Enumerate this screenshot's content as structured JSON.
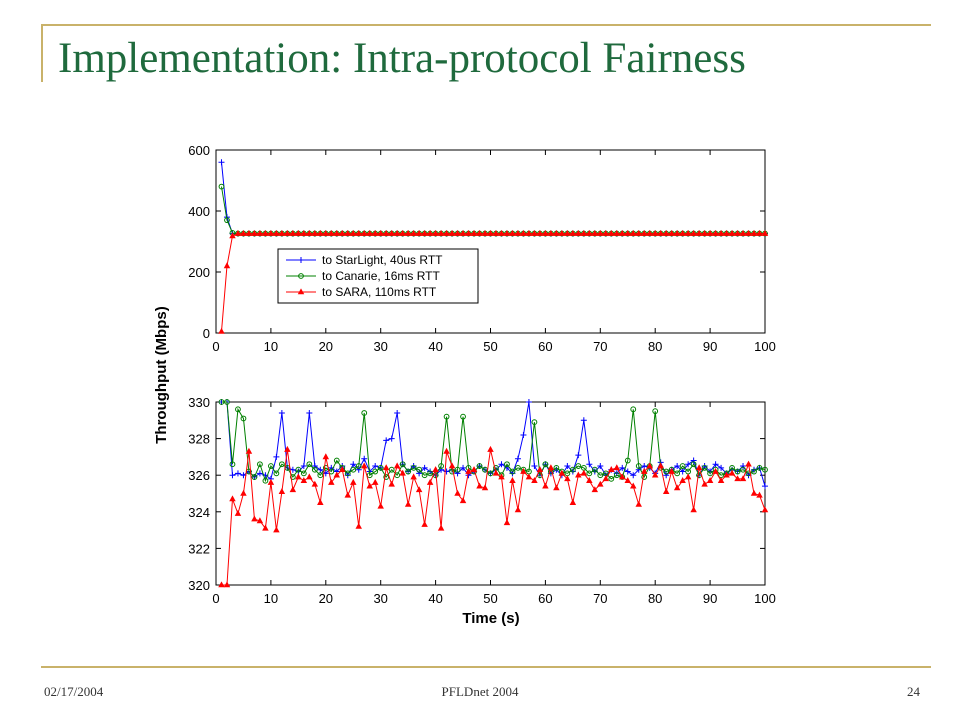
{
  "slide": {
    "title": "Implementation: Intra-protocol Fairness",
    "footer": {
      "date": "02/17/2004",
      "center": "PFLDnet 2004",
      "page": "24"
    }
  },
  "colors": {
    "title": "#1f6a3d",
    "accent": "#c9b26a"
  },
  "chart_data": [
    {
      "type": "line",
      "xlabel": "",
      "ylabel": "Throughput (Mbps)",
      "xlim": [
        0,
        100
      ],
      "ylim": [
        0,
        600
      ],
      "xticks": [
        "0",
        "10",
        "20",
        "30",
        "40",
        "50",
        "60",
        "70",
        "80",
        "90",
        "100"
      ],
      "yticks": [
        "0",
        "200",
        "400",
        "600"
      ],
      "grid": false,
      "legend_position": "center-left",
      "x": [
        1,
        2,
        3,
        4,
        5,
        6,
        7,
        8,
        9,
        10,
        11,
        12,
        13,
        14,
        15,
        16,
        17,
        18,
        19,
        20,
        21,
        22,
        23,
        24,
        25,
        26,
        27,
        28,
        29,
        30,
        31,
        32,
        33,
        34,
        35,
        36,
        37,
        38,
        39,
        40,
        41,
        42,
        43,
        44,
        45,
        46,
        47,
        48,
        49,
        50,
        51,
        52,
        53,
        54,
        55,
        56,
        57,
        58,
        59,
        60,
        61,
        62,
        63,
        64,
        65,
        66,
        67,
        68,
        69,
        70,
        71,
        72,
        73,
        74,
        75,
        76,
        77,
        78,
        79,
        80,
        81,
        82,
        83,
        84,
        85,
        86,
        87,
        88,
        89,
        90,
        91,
        92,
        93,
        94,
        95,
        96,
        97,
        98,
        99,
        100
      ],
      "series": [
        {
          "name": "to StarLight, 40us RTT",
          "color": "#0000ff",
          "marker": "plus",
          "values": [
            560,
            380,
            326,
            326,
            326,
            326,
            326,
            326,
            326,
            326,
            326,
            326,
            326,
            326,
            326,
            326,
            326,
            326,
            326,
            326,
            326,
            326,
            326,
            326,
            326,
            326,
            326,
            326,
            326,
            326,
            326,
            326,
            326,
            326,
            326,
            326,
            326,
            326,
            326,
            326,
            326,
            326,
            326,
            326,
            326,
            326,
            326,
            326,
            326,
            326,
            326,
            326,
            326,
            326,
            326,
            326,
            326,
            326,
            326,
            326,
            326,
            326,
            326,
            326,
            326,
            326,
            326,
            326,
            326,
            326,
            326,
            326,
            326,
            326,
            326,
            326,
            326,
            326,
            326,
            326,
            326,
            326,
            326,
            326,
            326,
            326,
            326,
            326,
            326,
            326,
            326,
            326,
            326,
            326,
            326,
            326,
            326,
            326,
            326,
            326
          ]
        },
        {
          "name": "to Canarie, 16ms RTT",
          "color": "#008000",
          "marker": "circle",
          "values": [
            480,
            370,
            328,
            326,
            326,
            326,
            326,
            326,
            326,
            326,
            326,
            326,
            326,
            326,
            326,
            326,
            326,
            326,
            326,
            326,
            326,
            326,
            326,
            326,
            326,
            326,
            326,
            326,
            326,
            326,
            326,
            326,
            326,
            326,
            326,
            326,
            326,
            326,
            326,
            326,
            326,
            326,
            326,
            326,
            326,
            326,
            326,
            326,
            326,
            326,
            326,
            326,
            326,
            326,
            326,
            326,
            326,
            326,
            326,
            326,
            326,
            326,
            326,
            326,
            326,
            326,
            326,
            326,
            326,
            326,
            326,
            326,
            326,
            326,
            326,
            326,
            326,
            326,
            326,
            326,
            326,
            326,
            326,
            326,
            326,
            326,
            326,
            326,
            326,
            326,
            326,
            326,
            326,
            326,
            326,
            326,
            326,
            326,
            326,
            326
          ]
        },
        {
          "name": "to SARA, 110ms RTT",
          "color": "#ff0000",
          "marker": "triangle",
          "values": [
            5,
            220,
            318,
            326,
            326,
            326,
            326,
            326,
            326,
            326,
            326,
            326,
            326,
            326,
            326,
            326,
            326,
            326,
            326,
            326,
            326,
            326,
            326,
            326,
            326,
            326,
            326,
            326,
            326,
            326,
            326,
            326,
            326,
            326,
            326,
            326,
            326,
            326,
            326,
            326,
            326,
            326,
            326,
            326,
            326,
            326,
            326,
            326,
            326,
            326,
            326,
            326,
            326,
            326,
            326,
            326,
            326,
            326,
            326,
            326,
            326,
            326,
            326,
            326,
            326,
            326,
            326,
            326,
            326,
            326,
            326,
            326,
            326,
            326,
            326,
            326,
            326,
            326,
            326,
            326,
            326,
            326,
            326,
            326,
            326,
            326,
            326,
            326,
            326,
            326,
            326,
            326,
            326,
            326,
            326,
            326,
            326,
            326,
            326,
            326
          ]
        }
      ]
    },
    {
      "type": "line",
      "xlabel": "Time (s)",
      "ylabel": "Throughput (Mbps)",
      "xlim": [
        0,
        100
      ],
      "ylim": [
        320,
        330
      ],
      "xticks": [
        "0",
        "10",
        "20",
        "30",
        "40",
        "50",
        "60",
        "70",
        "80",
        "90",
        "100"
      ],
      "yticks": [
        "320",
        "322",
        "324",
        "326",
        "328",
        "330"
      ],
      "grid": false,
      "x": [
        1,
        2,
        3,
        4,
        5,
        6,
        7,
        8,
        9,
        10,
        11,
        12,
        13,
        14,
        15,
        16,
        17,
        18,
        19,
        20,
        21,
        22,
        23,
        24,
        25,
        26,
        27,
        28,
        29,
        30,
        31,
        32,
        33,
        34,
        35,
        36,
        37,
        38,
        39,
        40,
        41,
        42,
        43,
        44,
        45,
        46,
        47,
        48,
        49,
        50,
        51,
        52,
        53,
        54,
        55,
        56,
        57,
        58,
        59,
        60,
        61,
        62,
        63,
        64,
        65,
        66,
        67,
        68,
        69,
        70,
        71,
        72,
        73,
        74,
        75,
        76,
        77,
        78,
        79,
        80,
        81,
        82,
        83,
        84,
        85,
        86,
        87,
        88,
        89,
        90,
        91,
        92,
        93,
        94,
        95,
        96,
        97,
        98,
        99,
        100
      ],
      "series": [
        {
          "name": "to StarLight, 40us RTT",
          "color": "#0000ff",
          "marker": "plus",
          "values": [
            330,
            330,
            326.0,
            326.1,
            326.0,
            326.2,
            325.9,
            326.1,
            326.0,
            325.8,
            327.0,
            329.4,
            326.4,
            326.3,
            326.2,
            326.5,
            329.4,
            326.5,
            326.3,
            326.1,
            326.4,
            326.2,
            326.5,
            326.0,
            326.6,
            326.3,
            326.9,
            326.2,
            326.5,
            326.4,
            327.9,
            328.0,
            329.4,
            326.6,
            326.2,
            326.5,
            326.1,
            326.4,
            326.2,
            326.0,
            326.3,
            326.2,
            326.3,
            326.1,
            326.4,
            326.0,
            326.2,
            326.5,
            326.3,
            326.1,
            326.3,
            326.6,
            326.4,
            326.1,
            326.9,
            328.2,
            330.0,
            326.5,
            326.0,
            326.6,
            326.1,
            326.3,
            326.0,
            326.5,
            326.2,
            327.1,
            329.0,
            326.6,
            326.2,
            326.5,
            326.0,
            326.3,
            326.1,
            326.4,
            326.2,
            326.0,
            326.3,
            326.5,
            326.4,
            326.1,
            326.7,
            326.0,
            326.3,
            326.5,
            326.2,
            326.6,
            326.8,
            326.0,
            326.5,
            326.2,
            326.6,
            326.4,
            326.1,
            326.3,
            326.2,
            326.5,
            326.0,
            326.3,
            326.4,
            325.4
          ]
        },
        {
          "name": "to Canarie, 16ms RTT",
          "color": "#008000",
          "marker": "circle",
          "values": [
            330,
            330,
            326.6,
            329.6,
            329.1,
            326.2,
            325.9,
            326.6,
            325.7,
            326.5,
            326.1,
            326.6,
            326.4,
            325.9,
            326.3,
            326.1,
            326.6,
            326.3,
            326.0,
            326.4,
            326.2,
            326.8,
            326.4,
            326.1,
            326.3,
            326.5,
            329.4,
            326.0,
            326.2,
            326.4,
            325.9,
            326.3,
            326.0,
            326.6,
            326.2,
            326.4,
            326.3,
            326.0,
            326.1,
            326.0,
            326.5,
            329.2,
            326.2,
            326.3,
            329.2,
            326.4,
            326.2,
            326.5,
            326.3,
            326.1,
            326.4,
            326.0,
            326.6,
            326.2,
            326.4,
            326.3,
            326.2,
            328.9,
            326.0,
            326.6,
            326.2,
            326.4,
            326.2,
            326.1,
            326.3,
            326.5,
            326.4,
            326.1,
            326.3,
            326.0,
            326.1,
            325.8,
            326.0,
            325.9,
            326.8,
            329.6,
            326.5,
            325.9,
            326.5,
            329.5,
            326.4,
            326.2,
            326.3,
            326.1,
            326.5,
            326.2,
            326.6,
            326.0,
            326.4,
            326.1,
            326.3,
            326.0,
            326.1,
            326.4,
            326.2,
            326.3,
            326.1,
            326.2,
            326.4,
            326.3
          ]
        },
        {
          "name": "to SARA, 110ms RTT",
          "color": "#ff0000",
          "marker": "triangle",
          "values": [
            320,
            320,
            324.7,
            323.9,
            325.0,
            327.3,
            323.6,
            323.5,
            323.1,
            325.6,
            323.0,
            325.1,
            327.4,
            325.2,
            325.9,
            325.7,
            325.9,
            325.5,
            324.5,
            327.0,
            325.6,
            326.0,
            326.3,
            324.9,
            325.6,
            323.2,
            326.5,
            325.4,
            325.6,
            324.3,
            326.4,
            325.5,
            326.5,
            326.1,
            324.4,
            325.9,
            325.2,
            323.3,
            325.6,
            326.3,
            323.1,
            327.3,
            326.5,
            325.0,
            324.6,
            326.2,
            326.3,
            325.4,
            325.3,
            327.4,
            326.1,
            325.9,
            323.4,
            325.7,
            324.1,
            326.2,
            325.9,
            325.7,
            326.3,
            325.4,
            326.4,
            325.3,
            326.1,
            325.8,
            324.5,
            326.0,
            326.1,
            325.7,
            325.2,
            325.5,
            325.8,
            326.3,
            326.4,
            325.9,
            325.7,
            325.4,
            324.4,
            326.2,
            326.5,
            326.0,
            326.5,
            325.1,
            326.2,
            325.3,
            325.7,
            325.9,
            324.1,
            326.4,
            325.5,
            325.7,
            326.2,
            325.7,
            326.0,
            326.1,
            325.8,
            325.8,
            326.6,
            325.0,
            324.9,
            324.1
          ]
        }
      ]
    }
  ]
}
